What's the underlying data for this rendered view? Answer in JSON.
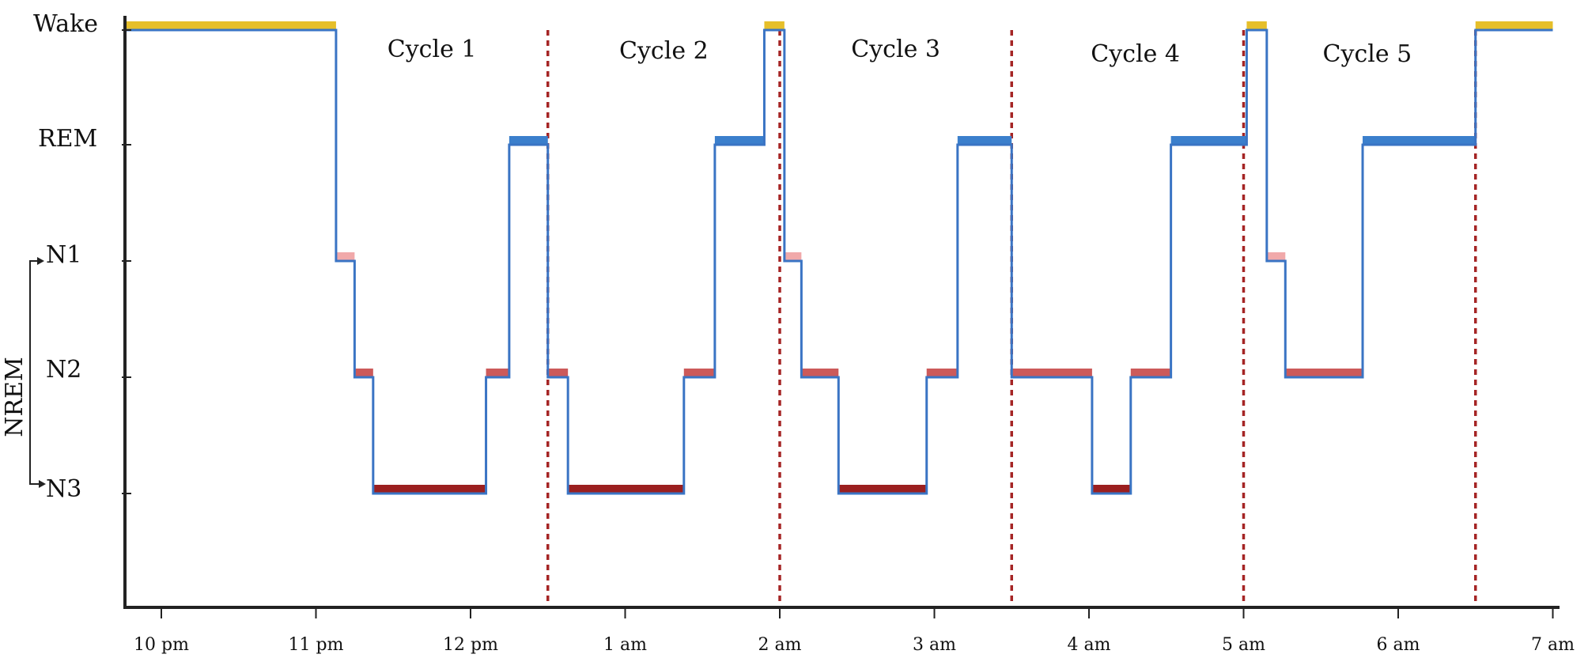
{
  "chart_data": {
    "type": "line",
    "title": "",
    "xlabel": "",
    "ylabel": "",
    "x_unit": "hours since 10 pm",
    "xlim": [
      -0.25,
      9.05
    ],
    "x_ticks": [
      {
        "x": 0,
        "label": "10 pm"
      },
      {
        "x": 1,
        "label": "11 pm"
      },
      {
        "x": 2,
        "label": "12 pm"
      },
      {
        "x": 3,
        "label": "1 am"
      },
      {
        "x": 4,
        "label": "2 am"
      },
      {
        "x": 5,
        "label": "3 am"
      },
      {
        "x": 6,
        "label": "4 am"
      },
      {
        "x": 7,
        "label": "5 am"
      },
      {
        "x": 8,
        "label": "6 am"
      },
      {
        "x": 9,
        "label": "7 am"
      }
    ],
    "stages": [
      {
        "level": 4,
        "label": "Wake"
      },
      {
        "level": 3,
        "label": "REM"
      },
      {
        "level": 2,
        "label": "N1"
      },
      {
        "level": 1,
        "label": "N2"
      },
      {
        "level": 0,
        "label": "N3"
      }
    ],
    "nrem_label": "NREM",
    "cycles": [
      {
        "label": "Cycle 1",
        "x": 1.75
      },
      {
        "label": "Cycle 2",
        "x": 3.25
      },
      {
        "label": "Cycle 3",
        "x": 4.75
      },
      {
        "label": "Cycle 4",
        "x": 6.3
      },
      {
        "label": "Cycle 5",
        "x": 7.8
      }
    ],
    "cycle_boundaries": [
      2.5,
      4.0,
      5.5,
      7.0,
      8.5
    ],
    "segments": [
      {
        "start": -0.25,
        "end": 1.13,
        "stage": "Wake"
      },
      {
        "start": 1.13,
        "end": 1.25,
        "stage": "N1"
      },
      {
        "start": 1.25,
        "end": 1.37,
        "stage": "N2"
      },
      {
        "start": 1.37,
        "end": 2.1,
        "stage": "N3"
      },
      {
        "start": 2.1,
        "end": 2.25,
        "stage": "N2"
      },
      {
        "start": 2.25,
        "end": 2.5,
        "stage": "REM"
      },
      {
        "start": 2.5,
        "end": 2.63,
        "stage": "N2"
      },
      {
        "start": 2.63,
        "end": 3.38,
        "stage": "N3"
      },
      {
        "start": 3.38,
        "end": 3.58,
        "stage": "N2"
      },
      {
        "start": 3.58,
        "end": 3.9,
        "stage": "REM"
      },
      {
        "start": 3.9,
        "end": 4.03,
        "stage": "Wake"
      },
      {
        "start": 4.03,
        "end": 4.14,
        "stage": "N1"
      },
      {
        "start": 4.14,
        "end": 4.38,
        "stage": "N2"
      },
      {
        "start": 4.38,
        "end": 4.95,
        "stage": "N3"
      },
      {
        "start": 4.95,
        "end": 5.15,
        "stage": "N2"
      },
      {
        "start": 5.15,
        "end": 5.5,
        "stage": "REM"
      },
      {
        "start": 5.5,
        "end": 6.02,
        "stage": "N2"
      },
      {
        "start": 6.02,
        "end": 6.27,
        "stage": "N3"
      },
      {
        "start": 6.27,
        "end": 6.53,
        "stage": "N2"
      },
      {
        "start": 6.53,
        "end": 7.02,
        "stage": "REM"
      },
      {
        "start": 7.02,
        "end": 7.15,
        "stage": "Wake"
      },
      {
        "start": 7.15,
        "end": 7.27,
        "stage": "N1"
      },
      {
        "start": 7.27,
        "end": 7.77,
        "stage": "N2"
      },
      {
        "start": 7.77,
        "end": 8.5,
        "stage": "REM"
      },
      {
        "start": 8.5,
        "end": 9.0,
        "stage": "Wake"
      }
    ],
    "colors": {
      "hypnogram_line": "#3a74c4",
      "Wake": "#e6bf2a",
      "REM": "#3b7fcc",
      "N1": "#f1a9aa",
      "N2": "#cc5a5a",
      "N3": "#9b1f1f",
      "cycle_boundary": "#a52525",
      "axis": "#222222"
    }
  }
}
